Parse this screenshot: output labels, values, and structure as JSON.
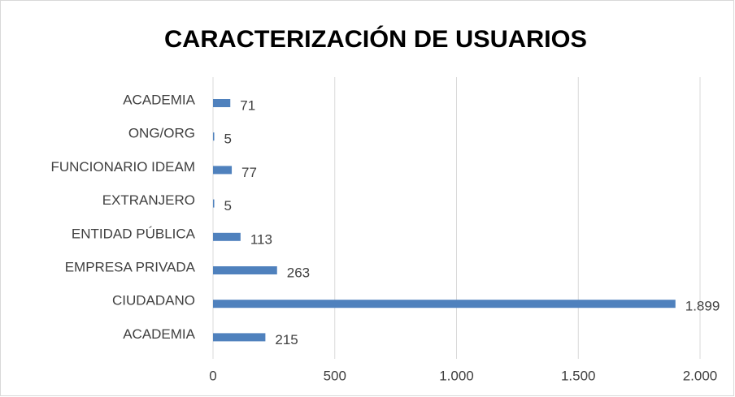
{
  "chart_data": {
    "type": "barh",
    "title": "CARACTERIZACIÓN DE USUARIOS",
    "categories": [
      "ACADEMIA",
      "ONG/ORG",
      "FUNCIONARIO IDEAM",
      "EXTRANJERO",
      "ENTIDAD PÚBLICA",
      "EMPRESA PRIVADA",
      "CIUDADANO",
      "ACADEMIA"
    ],
    "values": [
      71,
      5,
      77,
      5,
      113,
      263,
      1899,
      215
    ],
    "value_labels": [
      "71",
      "5",
      "77",
      "5",
      "113",
      "263",
      "1.899",
      "215"
    ],
    "color": "#4f81bd",
    "xlim": [
      0,
      2000
    ],
    "xticks": [
      0,
      500,
      {
        "value": 1000,
        "label": "1.000"
      },
      {
        "value": 1500,
        "label": "1.500"
      },
      {
        "value": 2000,
        "label": "2.000"
      }
    ],
    "grid": true
  }
}
